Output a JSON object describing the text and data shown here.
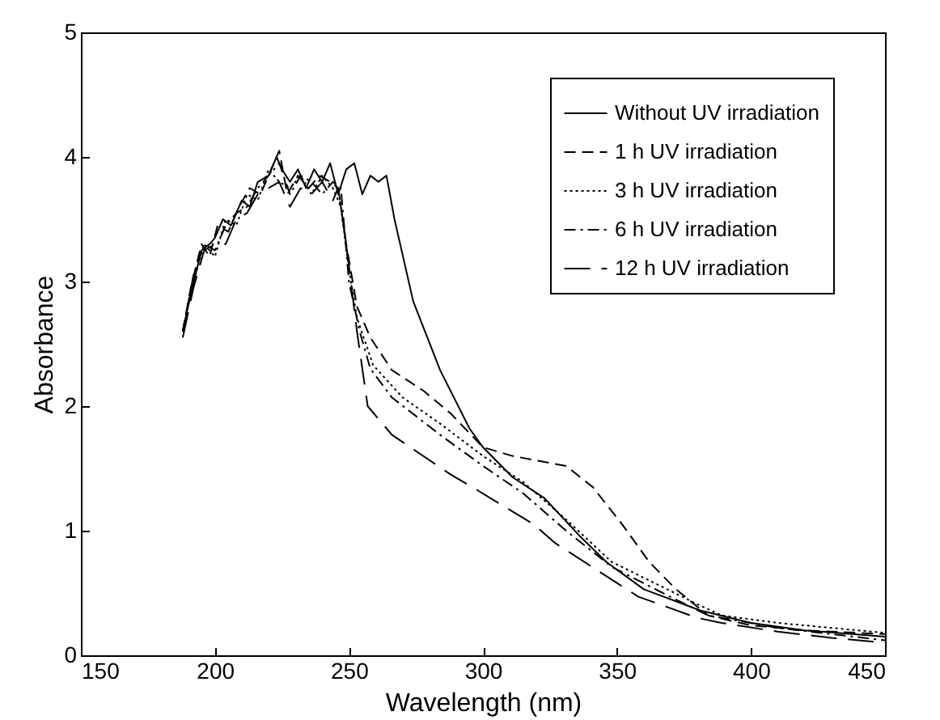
{
  "chart_data": {
    "type": "line",
    "xlabel": "Wavelength (nm)",
    "ylabel": "Absorbance",
    "xlim": [
      150,
      450
    ],
    "ylim": [
      0,
      5
    ],
    "xticks": [
      150,
      200,
      250,
      300,
      350,
      400,
      450
    ],
    "yticks": [
      0,
      1,
      2,
      3,
      4,
      5
    ],
    "grid": false,
    "legend": "top right",
    "marker": "none",
    "series": [
      {
        "name": "Without UV irradiation",
        "color": "#000000",
        "line_style": "solid",
        "x": [
          188,
          191,
          195,
          198,
          200,
          203,
          206,
          210,
          213,
          216,
          220,
          223,
          225,
          228,
          231,
          234,
          237,
          240,
          243,
          246,
          249,
          252,
          255,
          258,
          261,
          264,
          267,
          274,
          284,
          295,
          300,
          311,
          323,
          336,
          346,
          360,
          381,
          400,
          420,
          450
        ],
        "values": [
          2.6,
          2.9,
          3.25,
          3.3,
          3.35,
          3.5,
          3.45,
          3.65,
          3.6,
          3.8,
          3.85,
          4.0,
          3.9,
          3.8,
          3.9,
          3.75,
          3.9,
          3.8,
          3.95,
          3.7,
          3.9,
          3.95,
          3.7,
          3.85,
          3.8,
          3.85,
          3.5,
          2.84,
          2.29,
          1.82,
          1.67,
          1.43,
          1.26,
          0.96,
          0.75,
          0.53,
          0.36,
          0.26,
          0.2,
          0.15
        ]
      },
      {
        "name": "1 h UV irradiation",
        "color": "#000000",
        "line_style": "dashed",
        "x": [
          188,
          191,
          195,
          198,
          201,
          205,
          209,
          213,
          217,
          221,
          224,
          227,
          231,
          235,
          239,
          243,
          246,
          249,
          253,
          258,
          266,
          278,
          288,
          300,
          311,
          321,
          331,
          341,
          352,
          362,
          372,
          384,
          400,
          420,
          450
        ],
        "values": [
          2.6,
          2.95,
          3.3,
          3.2,
          3.45,
          3.4,
          3.6,
          3.75,
          3.7,
          3.9,
          4.05,
          3.7,
          3.85,
          3.75,
          3.85,
          3.8,
          3.75,
          3.3,
          2.8,
          2.55,
          2.29,
          2.12,
          1.94,
          1.67,
          1.6,
          1.56,
          1.52,
          1.35,
          1.05,
          0.75,
          0.53,
          0.32,
          0.24,
          0.2,
          0.17
        ]
      },
      {
        "name": "3 h UV irradiation",
        "color": "#000000",
        "line_style": "dotted",
        "x": [
          188,
          192,
          196,
          200,
          204,
          208,
          212,
          216,
          220,
          224,
          228,
          232,
          236,
          240,
          244,
          247,
          250,
          253,
          259,
          270,
          284,
          300,
          315,
          331,
          348,
          364,
          380,
          389,
          410,
          430,
          450
        ],
        "values": [
          2.6,
          3.0,
          3.3,
          3.2,
          3.5,
          3.45,
          3.7,
          3.65,
          3.9,
          3.8,
          3.75,
          3.85,
          3.7,
          3.85,
          3.75,
          3.6,
          3.1,
          2.71,
          2.33,
          2.07,
          1.86,
          1.6,
          1.39,
          1.09,
          0.75,
          0.58,
          0.41,
          0.32,
          0.26,
          0.22,
          0.18
        ]
      },
      {
        "name": "6 h UV irradiation",
        "color": "#000000",
        "line_style": "dashdot",
        "x": [
          188,
          192,
          196,
          200,
          204,
          208,
          212,
          216,
          220,
          224,
          228,
          232,
          236,
          240,
          244,
          247,
          250,
          254,
          258,
          266,
          284,
          300,
          315,
          331,
          348,
          368,
          384,
          410,
          430,
          450
        ],
        "values": [
          2.6,
          3.05,
          3.3,
          3.25,
          3.45,
          3.55,
          3.6,
          3.75,
          3.85,
          3.95,
          3.7,
          3.85,
          3.8,
          3.7,
          3.8,
          3.75,
          3.0,
          2.6,
          2.3,
          2.07,
          1.77,
          1.52,
          1.3,
          1.0,
          0.71,
          0.49,
          0.32,
          0.22,
          0.17,
          0.12
        ]
      },
      {
        "name": "12  h UV irradiation",
        "color": "#000000",
        "line_style": "longdash",
        "x": [
          188,
          192,
          196,
          200,
          204,
          208,
          212,
          216,
          220,
          224,
          228,
          232,
          236,
          240,
          244,
          246,
          249,
          253,
          257,
          266,
          288,
          296,
          319,
          327,
          350,
          358,
          380,
          389,
          410,
          430,
          450
        ],
        "values": [
          2.55,
          2.95,
          3.25,
          3.3,
          3.3,
          3.5,
          3.55,
          3.7,
          3.75,
          3.8,
          3.6,
          3.75,
          3.7,
          3.8,
          3.65,
          3.75,
          3.3,
          2.6,
          2.0,
          1.77,
          1.45,
          1.35,
          1.05,
          0.9,
          0.58,
          0.47,
          0.3,
          0.26,
          0.19,
          0.14,
          0.1
        ]
      }
    ]
  }
}
